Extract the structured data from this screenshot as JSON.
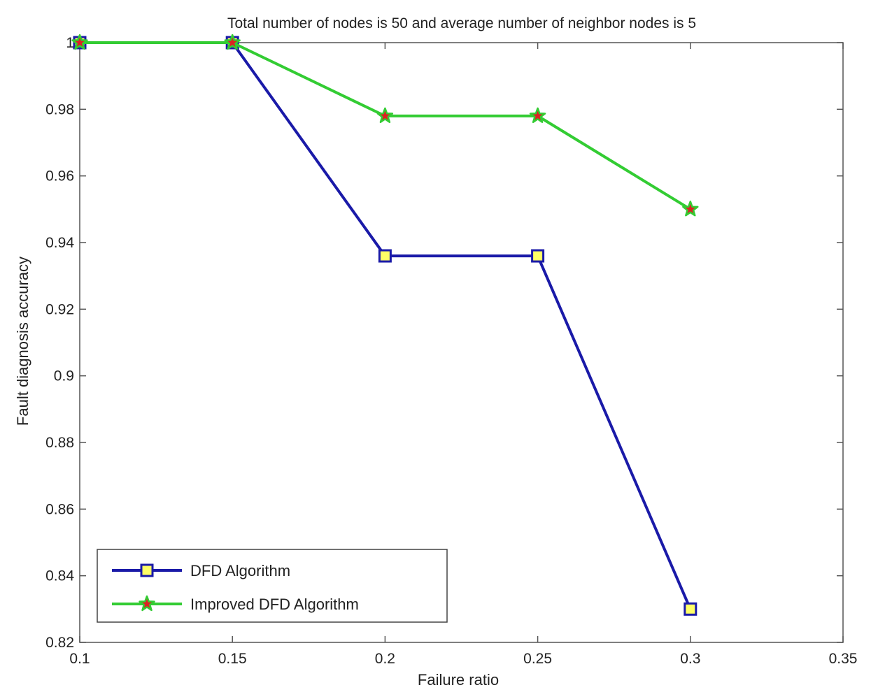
{
  "chart_data": {
    "type": "line",
    "title": "Total number of nodes is 50 and average number of neighbor nodes is 5",
    "xlabel": "Failure ratio",
    "ylabel": "Fault diagnosis accuracy",
    "xlim": [
      0.1,
      0.35
    ],
    "ylim": [
      0.82,
      1.0
    ],
    "xticks": [
      0.1,
      0.15,
      0.2,
      0.25,
      0.3,
      0.35
    ],
    "xtick_labels": [
      "0.1",
      "0.15",
      "0.2",
      "0.25",
      "0.3",
      "0.35"
    ],
    "yticks": [
      0.82,
      0.84,
      0.86,
      0.88,
      0.9,
      0.92,
      0.94,
      0.96,
      0.98,
      1.0
    ],
    "ytick_labels": [
      "0.82",
      "0.84",
      "0.86",
      "0.88",
      "0.9",
      "0.92",
      "0.94",
      "0.96",
      "0.98",
      "1"
    ],
    "grid": false,
    "legend_position": "bottom-left",
    "x": [
      0.1,
      0.15,
      0.2,
      0.25,
      0.3
    ],
    "series": [
      {
        "name": "DFD Algorithm",
        "values": [
          1.0,
          1.0,
          0.936,
          0.936,
          0.83
        ],
        "color": "#1a1aa8",
        "marker": "square",
        "marker_fill": "#ffff66"
      },
      {
        "name": "Improved DFD Algorithm",
        "values": [
          1.0,
          1.0,
          0.978,
          0.978,
          0.95
        ],
        "color": "#33cc33",
        "marker": "star",
        "marker_fill": "#dd2222"
      }
    ]
  }
}
